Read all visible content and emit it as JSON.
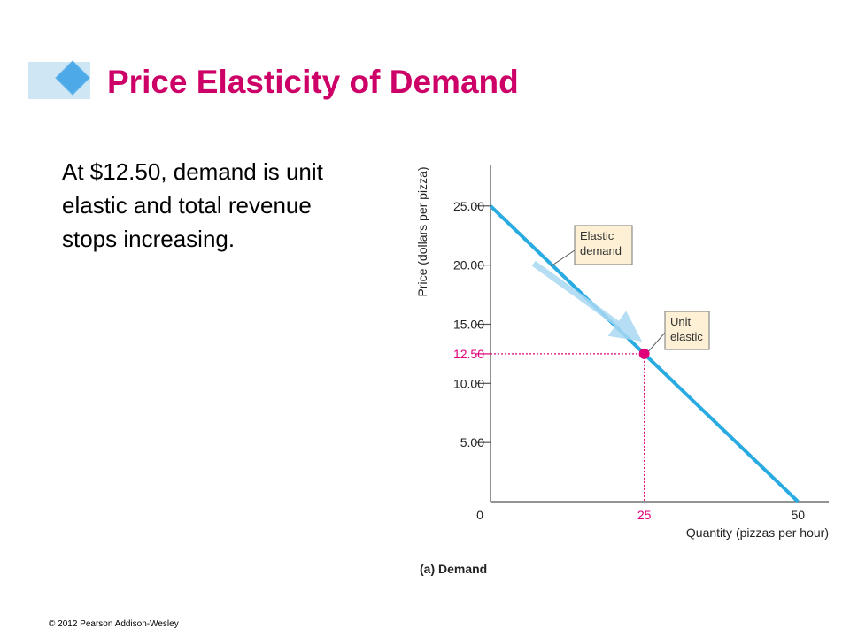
{
  "slide": {
    "title": "Price Elasticity of Demand",
    "body": "At $12.50, demand is unit elastic and total revenue stops increasing.",
    "copyright": "© 2012 Pearson Addison-Wesley"
  },
  "colors": {
    "title": "#cc0066",
    "demand_line": "#29abe2",
    "highlight": "#e0007a",
    "callout_fill": "#fdf0d5",
    "arrow": "#a9d8f3"
  },
  "chart_data": {
    "type": "line",
    "caption": "(a) Demand",
    "xlabel": "Quantity (pizzas per hour)",
    "ylabel": "Price (dollars per pizza)",
    "xlim": [
      0,
      55
    ],
    "ylim": [
      0,
      28.5
    ],
    "yticks": [
      5,
      10,
      15,
      20,
      25
    ],
    "ytick_labels": [
      "5.00",
      "10.00",
      "15.00",
      "20.00",
      "25.00"
    ],
    "xticks": [
      0,
      25,
      50
    ],
    "xtick_labels": [
      "0",
      "25",
      "50"
    ],
    "series": [
      {
        "x": [
          0,
          50
        ],
        "y": [
          25,
          0
        ]
      }
    ],
    "highlight_point": {
      "x": 25,
      "y": 12.5,
      "x_label": "25",
      "y_label": "12.50"
    },
    "annotations": [
      {
        "text_lines": [
          "Elastic",
          "demand"
        ]
      },
      {
        "text_lines": [
          "Unit",
          "elastic"
        ]
      }
    ],
    "grid": false,
    "legend": "none"
  }
}
